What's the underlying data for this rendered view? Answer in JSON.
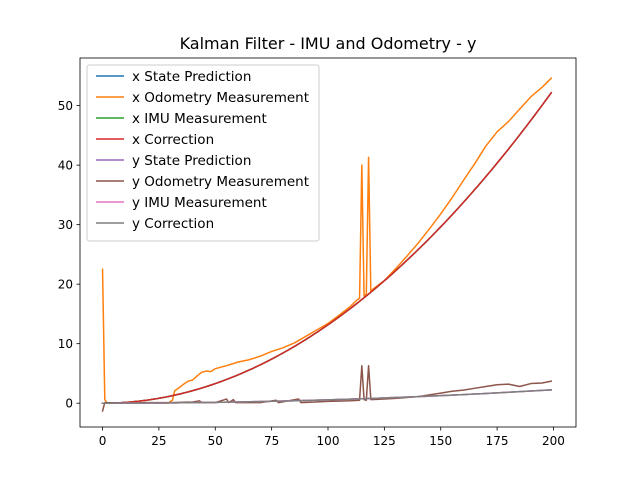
{
  "chart_data": {
    "type": "line",
    "title": "Kalman Filter - IMU and Odometry - y",
    "xlabel": "",
    "ylabel": "",
    "xlim": [
      -10,
      210
    ],
    "ylim": [
      -4,
      58
    ],
    "xticks": [
      0,
      25,
      50,
      75,
      100,
      125,
      150,
      175,
      200
    ],
    "yticks": [
      0,
      10,
      20,
      30,
      40,
      50
    ],
    "grid": false,
    "legend_position": "upper-left",
    "series": [
      {
        "name": "x State Prediction",
        "color": "#1f77b4",
        "model": "quadratic",
        "x_start": 0,
        "x_end": 199,
        "coef_a": 0.001317,
        "coef_b": 0.0,
        "intercept": 0.0
      },
      {
        "name": "x Odometry Measurement",
        "color": "#ff7f0e",
        "points": [
          [
            0,
            22.5
          ],
          [
            1,
            0.6
          ],
          [
            2,
            0.0
          ],
          [
            10,
            0.1
          ],
          [
            20,
            0.1
          ],
          [
            29,
            0.0
          ],
          [
            31,
            0.5
          ],
          [
            32,
            2.1
          ],
          [
            34,
            2.6
          ],
          [
            36,
            3.2
          ],
          [
            38,
            3.7
          ],
          [
            40,
            3.9
          ],
          [
            42,
            4.6
          ],
          [
            44,
            5.2
          ],
          [
            46,
            5.4
          ],
          [
            48,
            5.3
          ],
          [
            50,
            5.8
          ],
          [
            55,
            6.3
          ],
          [
            60,
            6.9
          ],
          [
            65,
            7.3
          ],
          [
            70,
            7.9
          ],
          [
            75,
            8.7
          ],
          [
            80,
            9.3
          ],
          [
            85,
            10.1
          ],
          [
            90,
            11.2
          ],
          [
            95,
            12.3
          ],
          [
            100,
            13.4
          ],
          [
            105,
            14.8
          ],
          [
            110,
            16.3
          ],
          [
            113,
            17.4
          ],
          [
            114,
            17.6
          ],
          [
            115,
            40.0
          ],
          [
            116,
            18.0
          ],
          [
            117,
            18.3
          ],
          [
            118,
            41.3
          ],
          [
            119,
            18.6
          ],
          [
            120,
            19.2
          ],
          [
            125,
            20.6
          ],
          [
            130,
            22.6
          ],
          [
            135,
            24.7
          ],
          [
            140,
            26.9
          ],
          [
            145,
            29.3
          ],
          [
            150,
            31.8
          ],
          [
            155,
            34.5
          ],
          [
            160,
            37.4
          ],
          [
            165,
            40.2
          ],
          [
            170,
            43.2
          ],
          [
            175,
            45.6
          ],
          [
            180,
            47.3
          ],
          [
            185,
            49.4
          ],
          [
            190,
            51.5
          ],
          [
            195,
            53.1
          ],
          [
            199,
            54.6
          ]
        ]
      },
      {
        "name": "x IMU Measurement",
        "color": "#2ca02c",
        "model": "quadratic",
        "x_start": 0,
        "x_end": 199,
        "coef_a": 0.001317,
        "coef_b": 0.0,
        "intercept": 0.0
      },
      {
        "name": "x Correction",
        "color": "#d62728",
        "model": "quadratic",
        "x_start": 0,
        "x_end": 199,
        "coef_a": 0.001317,
        "coef_b": 0.0,
        "intercept": 0.0
      },
      {
        "name": "y State Prediction",
        "color": "#9467bd",
        "model": "quadratic",
        "x_start": 0,
        "x_end": 199,
        "coef_a": 5.65e-05,
        "coef_b": 0.0,
        "intercept": 0.0
      },
      {
        "name": "y Odometry Measurement",
        "color": "#8c564b",
        "points": [
          [
            0,
            -1.3
          ],
          [
            1,
            0.1
          ],
          [
            10,
            0.0
          ],
          [
            20,
            0.1
          ],
          [
            30,
            0.1
          ],
          [
            40,
            0.2
          ],
          [
            43,
            0.4
          ],
          [
            44,
            0.1
          ],
          [
            50,
            0.1
          ],
          [
            55,
            0.7
          ],
          [
            56,
            0.1
          ],
          [
            58,
            0.6
          ],
          [
            59,
            0.1
          ],
          [
            70,
            0.1
          ],
          [
            77,
            0.5
          ],
          [
            78,
            0.1
          ],
          [
            87,
            0.7
          ],
          [
            88,
            0.1
          ],
          [
            100,
            0.3
          ],
          [
            110,
            0.4
          ],
          [
            114,
            0.5
          ],
          [
            115,
            6.3
          ],
          [
            116,
            0.6
          ],
          [
            117,
            0.5
          ],
          [
            118,
            6.3
          ],
          [
            119,
            0.6
          ],
          [
            125,
            0.7
          ],
          [
            130,
            0.8
          ],
          [
            140,
            1.1
          ],
          [
            145,
            1.4
          ],
          [
            150,
            1.7
          ],
          [
            155,
            2.0
          ],
          [
            160,
            2.2
          ],
          [
            165,
            2.5
          ],
          [
            170,
            2.8
          ],
          [
            175,
            3.1
          ],
          [
            180,
            3.2
          ],
          [
            185,
            2.8
          ],
          [
            190,
            3.3
          ],
          [
            195,
            3.4
          ],
          [
            199,
            3.7
          ]
        ]
      },
      {
        "name": "y IMU Measurement",
        "color": "#e377c2",
        "model": "quadratic",
        "x_start": 0,
        "x_end": 199,
        "coef_a": 5.65e-05,
        "coef_b": 0.0,
        "intercept": 0.0
      },
      {
        "name": "y Correction",
        "color": "#7f7f7f",
        "model": "quadratic",
        "x_start": 0,
        "x_end": 199,
        "coef_a": 5.65e-05,
        "coef_b": 0.0,
        "intercept": 0.0
      }
    ]
  }
}
